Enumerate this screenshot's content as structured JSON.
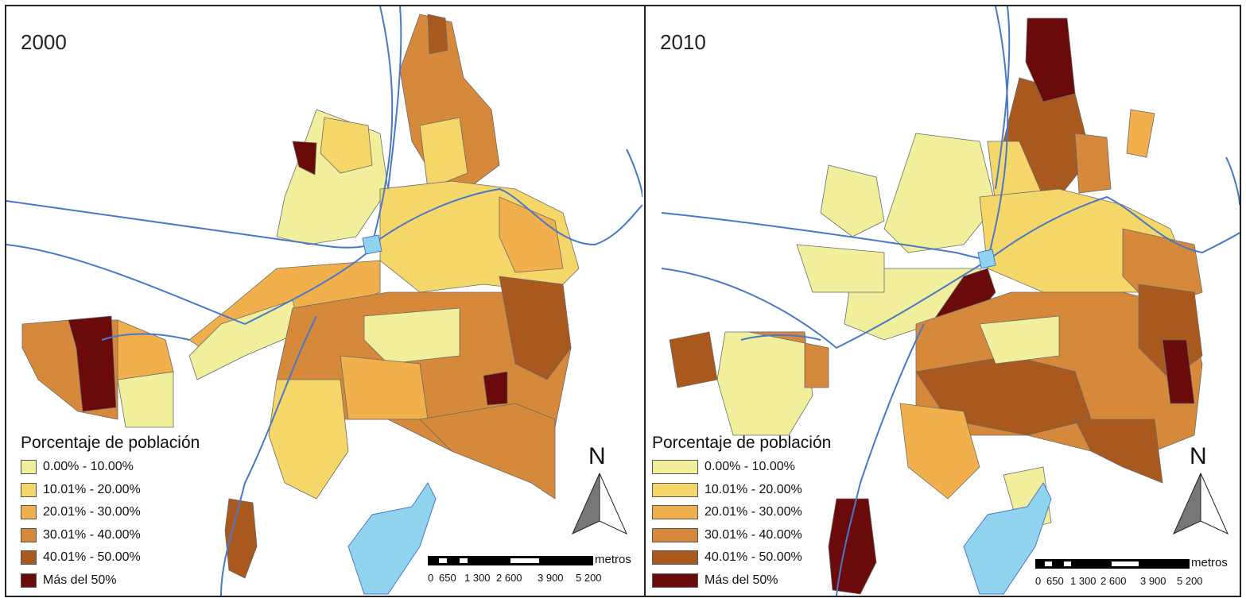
{
  "panels": [
    {
      "year": "2000",
      "legend": {
        "title": "Porcentaje de población",
        "items": [
          {
            "label": "0.00% - 10.00%",
            "color": "#f2ef9c"
          },
          {
            "label": "10.01% - 20.00%",
            "color": "#f5d769"
          },
          {
            "label": "20.01% - 30.00%",
            "color": "#f2b04d"
          },
          {
            "label": "30.01% - 40.00%",
            "color": "#d6893a"
          },
          {
            "label": "40.01% - 50.00%",
            "color": "#a9581e"
          },
          {
            "label": "Más del 50%",
            "color": "#6b0a0a"
          }
        ]
      },
      "north": "N",
      "scale": {
        "unit": "metros",
        "ticks": [
          "0",
          "650",
          "1 300",
          "2 600",
          "3 900",
          "5 200"
        ]
      }
    },
    {
      "year": "2010",
      "legend": {
        "title": "Porcentaje de  población",
        "items": [
          {
            "label": "0.00% - 10.00%",
            "color": "#f2ef9c"
          },
          {
            "label": "10.01% - 20.00%",
            "color": "#f5d769"
          },
          {
            "label": "20.01% - 30.00%",
            "color": "#f2b04d"
          },
          {
            "label": "30.01% - 40.00%",
            "color": "#d6893a"
          },
          {
            "label": "40.01% - 50.00%",
            "color": "#a9581e"
          },
          {
            "label": "Más del 50%",
            "color": "#6b0a0a"
          }
        ]
      },
      "north": "N",
      "scale": {
        "unit": "metros",
        "ticks": [
          "0",
          "650",
          "1 300",
          "2 600",
          "3 900",
          "5 200"
        ]
      }
    }
  ],
  "colors": {
    "river": "#4a78c8",
    "lake": "#8fd3ee",
    "border": "#6a6a6a"
  }
}
